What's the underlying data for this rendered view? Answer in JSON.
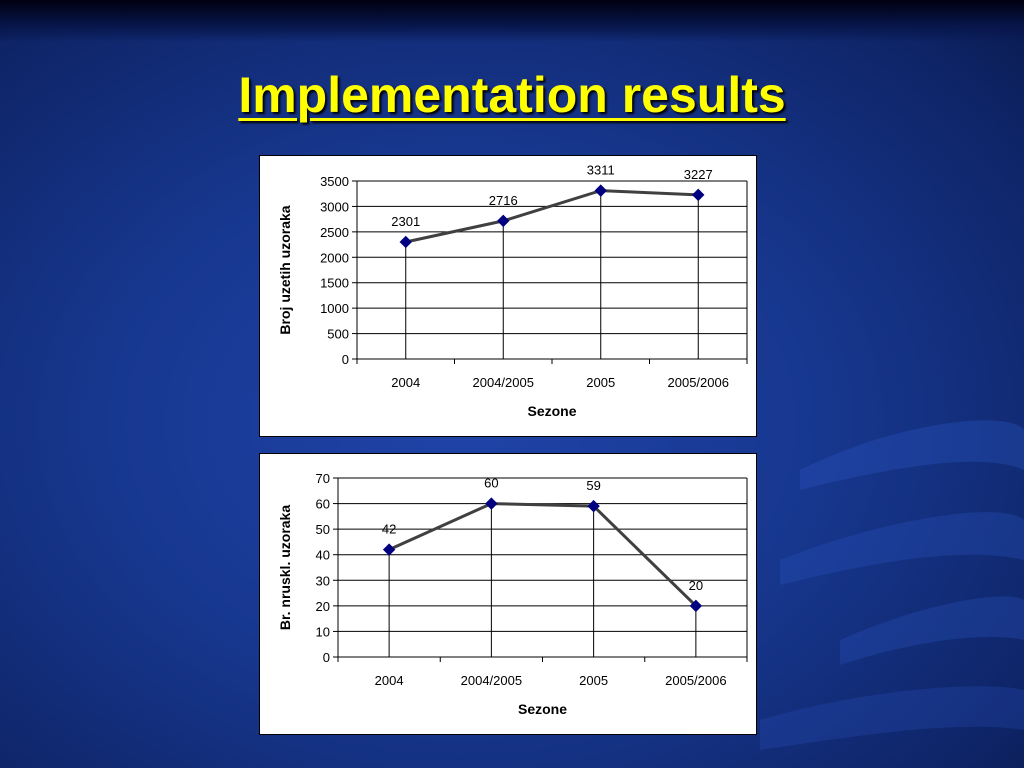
{
  "slide": {
    "title": "Implementation results"
  },
  "colors": {
    "title": "#ffff00",
    "background": "#17378f",
    "line": "#404040",
    "marker": "#000080"
  },
  "chart_data": [
    {
      "type": "line",
      "categories": [
        "2004",
        "2004/2005",
        "2005",
        "2005/2006"
      ],
      "series": [
        {
          "values": [
            2301,
            2716,
            3311,
            3227
          ]
        }
      ],
      "data_labels": [
        "2301",
        "2716",
        "3311",
        "3227"
      ],
      "xlabel": "Sezone",
      "ylabel": "Broj uzetih uzoraka",
      "ylim": [
        0,
        3500
      ],
      "yticks": [
        "0",
        "500",
        "1000",
        "1500",
        "2000",
        "2500",
        "3000",
        "3500"
      ],
      "grid": true
    },
    {
      "type": "line",
      "categories": [
        "2004",
        "2004/2005",
        "2005",
        "2005/2006"
      ],
      "series": [
        {
          "values": [
            42,
            60,
            59,
            20
          ]
        }
      ],
      "data_labels": [
        "42",
        "60",
        "59",
        "20"
      ],
      "xlabel": "Sezone",
      "ylabel": "Br. nruskl. uzoraka",
      "ylim": [
        0,
        70
      ],
      "yticks": [
        "0",
        "10",
        "20",
        "30",
        "40",
        "50",
        "60",
        "70"
      ],
      "grid": true
    }
  ]
}
